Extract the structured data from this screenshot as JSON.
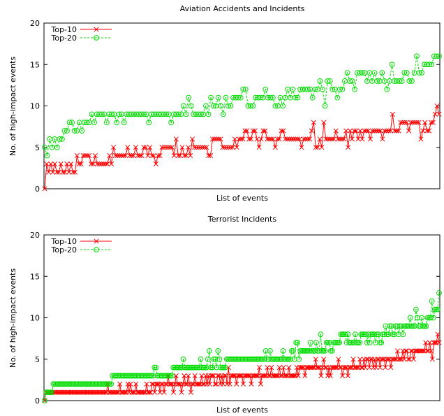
{
  "chart_data": [
    {
      "type": "line",
      "title": "Aviation Accidents and Incidents",
      "xlabel": "List of events",
      "ylabel": "No. of high-impact events",
      "ylim": [
        0,
        20
      ],
      "yticks": [
        0,
        5,
        10,
        15,
        20
      ],
      "legend_position": "top-left",
      "grid": false,
      "series": [
        {
          "name": "Top-10",
          "color": "#ff0000",
          "marker": "x",
          "values": [
            0,
            3,
            2,
            3,
            2,
            3,
            2,
            2,
            3,
            2,
            2,
            3,
            2,
            3,
            2,
            2,
            4,
            3,
            3,
            4,
            4,
            4,
            4,
            3,
            3,
            4,
            3,
            3,
            3,
            3,
            3,
            3,
            4,
            3,
            5,
            4,
            4,
            4,
            4,
            4,
            4,
            5,
            4,
            4,
            4,
            5,
            4,
            4,
            4,
            5,
            5,
            4,
            5,
            4,
            4,
            3,
            4,
            4,
            5,
            5,
            5,
            5,
            5,
            5,
            4,
            6,
            4,
            4,
            5,
            4,
            4,
            5,
            4,
            6,
            5,
            5,
            5,
            5,
            5,
            5,
            5,
            4,
            4,
            6,
            6,
            6,
            6,
            6,
            5,
            5,
            5,
            5,
            5,
            5,
            6,
            5,
            6,
            6,
            6,
            7,
            7,
            6,
            6,
            7,
            7,
            6,
            5,
            6,
            7,
            7,
            6,
            6,
            6,
            6,
            5,
            6,
            6,
            7,
            7,
            6,
            6,
            6,
            6,
            6,
            6,
            6,
            6,
            5,
            6,
            6,
            6,
            6,
            7,
            8,
            5,
            5,
            6,
            5,
            8,
            6,
            6,
            6,
            6,
            6,
            7,
            6,
            6,
            6,
            6,
            7,
            5,
            7,
            6,
            7,
            7,
            6,
            7,
            6,
            7,
            7,
            7,
            6,
            7,
            7,
            7,
            7,
            7,
            6,
            7,
            7,
            7,
            7,
            9,
            7,
            7,
            7,
            8,
            8,
            8,
            8,
            7,
            8,
            8,
            8,
            8,
            8,
            6,
            7,
            8,
            7,
            7,
            8,
            8,
            9,
            10,
            9
          ]
        },
        {
          "name": "Top-20",
          "color": "#00dd00",
          "marker": "o",
          "values": [
            5,
            4,
            6,
            5,
            6,
            5,
            6,
            6,
            7,
            7,
            8,
            8,
            7,
            7,
            8,
            7,
            8,
            8,
            8,
            9,
            8,
            9,
            9,
            9,
            9,
            8,
            9,
            9,
            9,
            8,
            9,
            9,
            8,
            9,
            9,
            9,
            9,
            9,
            9,
            9,
            9,
            9,
            8,
            9,
            9,
            9,
            9,
            9,
            9,
            9,
            9,
            8,
            9,
            9,
            9,
            9,
            10,
            9,
            11,
            10,
            9,
            9,
            9,
            9,
            9,
            10,
            9,
            11,
            10,
            10,
            11,
            10,
            9,
            11,
            10,
            10,
            11,
            11,
            11,
            11,
            12,
            12,
            10,
            10,
            10,
            11,
            11,
            11,
            11,
            12,
            11,
            11,
            11,
            10,
            10,
            11,
            10,
            11,
            12,
            11,
            12,
            11,
            11,
            12,
            12,
            12,
            12,
            12,
            11,
            12,
            12,
            13,
            12,
            10,
            13,
            13,
            12,
            12,
            11,
            12,
            12,
            13,
            14,
            13,
            13,
            12,
            14,
            14,
            14,
            14,
            13,
            14,
            13,
            14,
            13,
            13,
            14,
            13,
            12,
            13,
            15,
            13,
            13,
            13,
            13,
            14,
            14,
            13,
            13,
            14,
            16,
            14,
            14,
            15,
            15,
            15,
            15,
            16,
            16,
            16
          ]
        }
      ]
    },
    {
      "type": "line",
      "title": "Terrorist Incidents",
      "xlabel": "List of events",
      "ylabel": "No. of high-impact events",
      "ylim": [
        0,
        20
      ],
      "yticks": [
        0,
        5,
        10,
        15,
        20
      ],
      "legend_position": "top-left",
      "grid": false,
      "series": [
        {
          "name": "Top-10",
          "color": "#ff0000",
          "marker": "x",
          "values": [
            0,
            1,
            1,
            1,
            1,
            1,
            1,
            1,
            1,
            1,
            1,
            1,
            1,
            1,
            1,
            1,
            1,
            1,
            1,
            1,
            1,
            1,
            1,
            1,
            1,
            1,
            1,
            1,
            1,
            1,
            1,
            1,
            1,
            1,
            1,
            1,
            1,
            1,
            1,
            1,
            1,
            1,
            1,
            1,
            1,
            1,
            1,
            2,
            1,
            1,
            1,
            1,
            1,
            1,
            1,
            1,
            2,
            1,
            1,
            1,
            1,
            1,
            2,
            1,
            2,
            1,
            1,
            1,
            2,
            1,
            1,
            1,
            1,
            1,
            1,
            1,
            2,
            1,
            1,
            1,
            2,
            2,
            1,
            2,
            2,
            2,
            1,
            2,
            2,
            1,
            2,
            2,
            3,
            2,
            2,
            2,
            1,
            2,
            3,
            2,
            2,
            2,
            1,
            2,
            3,
            2,
            2,
            3,
            2,
            1,
            2,
            2,
            3,
            2,
            2,
            2,
            2,
            3,
            2,
            2,
            3,
            2,
            3,
            2,
            3,
            3,
            3,
            2,
            2,
            3,
            3,
            2,
            3,
            2,
            3,
            3,
            2,
            4,
            2,
            3,
            3,
            3,
            3,
            2,
            3,
            3,
            3,
            3,
            2,
            3,
            3,
            3,
            3,
            3,
            2,
            3,
            3,
            3,
            3,
            3,
            4,
            2,
            3,
            3,
            3,
            3,
            4,
            3,
            3,
            4,
            3,
            3,
            3,
            3,
            3,
            4,
            3,
            3,
            4,
            3,
            3,
            3,
            4,
            3,
            3,
            3,
            3,
            3,
            4,
            3,
            4,
            4,
            4,
            4,
            3,
            4,
            4,
            4,
            4,
            4,
            4,
            4,
            5,
            4,
            4,
            4,
            3,
            4,
            5,
            4,
            4,
            3,
            4,
            3,
            4,
            4,
            4,
            4,
            4,
            5,
            4,
            4,
            3,
            4,
            4,
            4,
            3,
            4,
            4,
            4,
            5,
            4,
            4,
            4,
            4,
            5,
            4,
            4,
            5,
            4,
            5,
            5,
            4,
            5,
            5,
            4,
            5,
            4,
            5,
            5,
            4,
            5,
            5,
            5,
            4,
            5,
            5,
            5,
            4,
            5,
            5,
            5,
            5,
            6,
            5,
            5,
            5,
            6,
            5,
            6,
            6,
            5,
            5,
            6,
            6,
            5,
            6,
            6,
            6,
            6,
            6,
            6,
            6,
            6,
            7,
            6,
            6,
            7,
            6,
            5,
            7,
            7,
            7,
            8,
            7
          ]
        },
        {
          "name": "Top-20",
          "color": "#00dd00",
          "marker": "o",
          "values": [
            0,
            1,
            1,
            1,
            1,
            1,
            2,
            2,
            2,
            2,
            2,
            2,
            2,
            2,
            2,
            2,
            2,
            2,
            2,
            2,
            2,
            2,
            2,
            2,
            2,
            2,
            2,
            2,
            2,
            2,
            2,
            2,
            2,
            2,
            2,
            2,
            2,
            2,
            2,
            2,
            2,
            2,
            2,
            2,
            2,
            2,
            2,
            3,
            3,
            3,
            3,
            3,
            3,
            3,
            3,
            3,
            3,
            3,
            3,
            3,
            3,
            3,
            3,
            3,
            3,
            3,
            3,
            3,
            3,
            3,
            3,
            3,
            3,
            3,
            3,
            3,
            4,
            4,
            3,
            3,
            3,
            3,
            3,
            3,
            3,
            3,
            3,
            3,
            3,
            4,
            4,
            4,
            4,
            4,
            4,
            4,
            5,
            4,
            4,
            4,
            4,
            4,
            4,
            4,
            4,
            4,
            4,
            4,
            5,
            4,
            4,
            4,
            4,
            5,
            6,
            4,
            4,
            5,
            5,
            4,
            6,
            5,
            4,
            4,
            4,
            4,
            5,
            5,
            5,
            5,
            5,
            5,
            5,
            5,
            5,
            5,
            5,
            5,
            5,
            5,
            5,
            5,
            5,
            5,
            5,
            5,
            5,
            5,
            5,
            5,
            5,
            5,
            5,
            6,
            5,
            5,
            6,
            5,
            5,
            5,
            5,
            5,
            5,
            5,
            5,
            6,
            5,
            5,
            5,
            5,
            5,
            6,
            6,
            5,
            7,
            7,
            5,
            6,
            6,
            6,
            6,
            6,
            6,
            6,
            7,
            6,
            6,
            6,
            7,
            6,
            6,
            8,
            6,
            6,
            6,
            7,
            7,
            7,
            6,
            6,
            7,
            7,
            7,
            7,
            7,
            8,
            8,
            8,
            8,
            7,
            8,
            7,
            7,
            7,
            7,
            8,
            7,
            7,
            7,
            8,
            8,
            8,
            8,
            7,
            8,
            7,
            8,
            8,
            8,
            7,
            8,
            8,
            7,
            7,
            8,
            8,
            9,
            8,
            8,
            9,
            9,
            8,
            8,
            9,
            9,
            8,
            9,
            9,
            8,
            9,
            9,
            9,
            9,
            10,
            9,
            9,
            9,
            11,
            10,
            9,
            9,
            10,
            9,
            9,
            9,
            10,
            10,
            10,
            12,
            10,
            11,
            11,
            11,
            13
          ]
        }
      ]
    }
  ]
}
